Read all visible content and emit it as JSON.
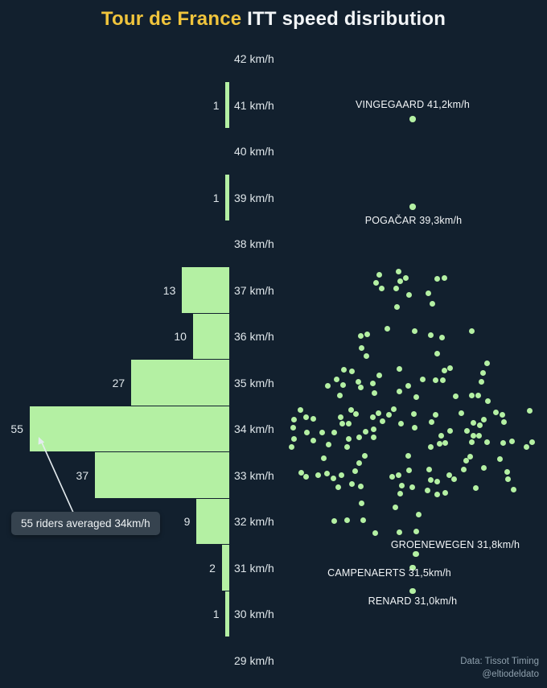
{
  "title": {
    "highlight": "Tour de France",
    "rest": " ITT speed disribution"
  },
  "annotation": {
    "text": "55 riders averaged 34km/h"
  },
  "credits": {
    "line1": "Data: Tissot Timing",
    "line2": "@eltiodeldato"
  },
  "colors": {
    "background": "#12202e",
    "green": "#b4f0a3",
    "yellow": "#f0c43c",
    "white": "#f2f5f7",
    "tick": "#dfe6ea",
    "muted": "#8fa0ad",
    "box": "#36434f",
    "boxtext": "#eef2f4"
  },
  "chart_data": {
    "type": "histogram+beeswarm",
    "title": "Tour de France ITT speed disribution",
    "y_unit": "km/h",
    "tick_suffix": " km/h",
    "axis_ticks_kmh": [
      42,
      41,
      40,
      39,
      38,
      37,
      36,
      35,
      34,
      33,
      32,
      31,
      30,
      29
    ],
    "histogram_bins": [
      {
        "speed_kmh": 41,
        "count": 1
      },
      {
        "speed_kmh": 39,
        "count": 1
      },
      {
        "speed_kmh": 37,
        "count": 13
      },
      {
        "speed_kmh": 36,
        "count": 10
      },
      {
        "speed_kmh": 35,
        "count": 27
      },
      {
        "speed_kmh": 34,
        "count": 55
      },
      {
        "speed_kmh": 33,
        "count": 37
      },
      {
        "speed_kmh": 32,
        "count": 9
      },
      {
        "speed_kmh": 31,
        "count": 2
      },
      {
        "speed_kmh": 30,
        "count": 1
      }
    ],
    "labeled_riders": [
      {
        "name": "VINGEGAARD",
        "speed_kmh": 41.2,
        "label": "VINGEGAARD 41,2km/h"
      },
      {
        "name": "POGAČAR",
        "speed_kmh": 39.3,
        "label": "POGAČAR 39,3km/h"
      },
      {
        "name": "GROENEWEGEN",
        "speed_kmh": 31.8,
        "label": "GROENEWEGEN 31,8km/h"
      },
      {
        "name": "CAMPENAERTS",
        "speed_kmh": 31.5,
        "label": "CAMPENAERTS 31,5km/h"
      },
      {
        "name": "RENARD",
        "speed_kmh": 31.0,
        "label": "RENARD 31,0km/h"
      }
    ],
    "annotation": "55 riders averaged 34km/h",
    "legend": "none",
    "grid": "off"
  }
}
